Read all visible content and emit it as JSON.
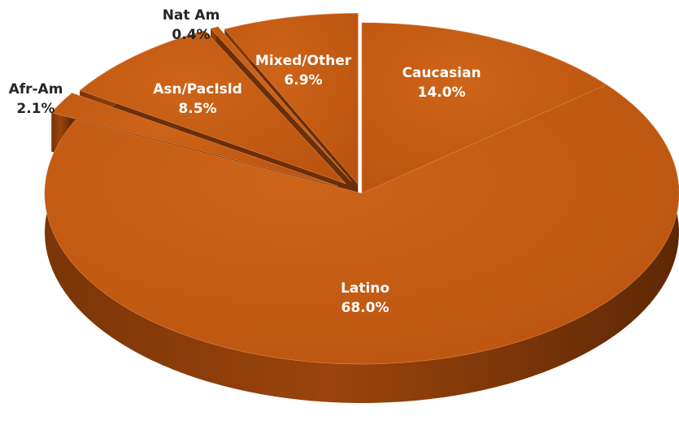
{
  "chart_data": {
    "type": "pie",
    "style": "3d-exploded",
    "title": "",
    "slices": [
      {
        "label": "Caucasian",
        "value": 14.0,
        "value_label": "14.0%",
        "color": "#C55A11"
      },
      {
        "label": "Latino",
        "value": 68.0,
        "value_label": "68.0%",
        "color": "#C55A11"
      },
      {
        "label": "Afr-Am",
        "value": 2.1,
        "value_label": "2.1%",
        "color": "#C55A11"
      },
      {
        "label": "Asn/PacIsld",
        "value": 8.5,
        "value_label": "8.5%",
        "color": "#C55A11"
      },
      {
        "label": "Nat Am",
        "value": 0.4,
        "value_label": "0.4%",
        "color": "#C55A11"
      },
      {
        "label": "Mixed/Other",
        "value": 6.9,
        "value_label": "6.9%",
        "color": "#C55A11"
      }
    ],
    "colors": {
      "top_face": "#C55A11",
      "side_face": "#7A3508",
      "label_inside": "#FFFFFF",
      "label_outside": "#262626"
    }
  }
}
